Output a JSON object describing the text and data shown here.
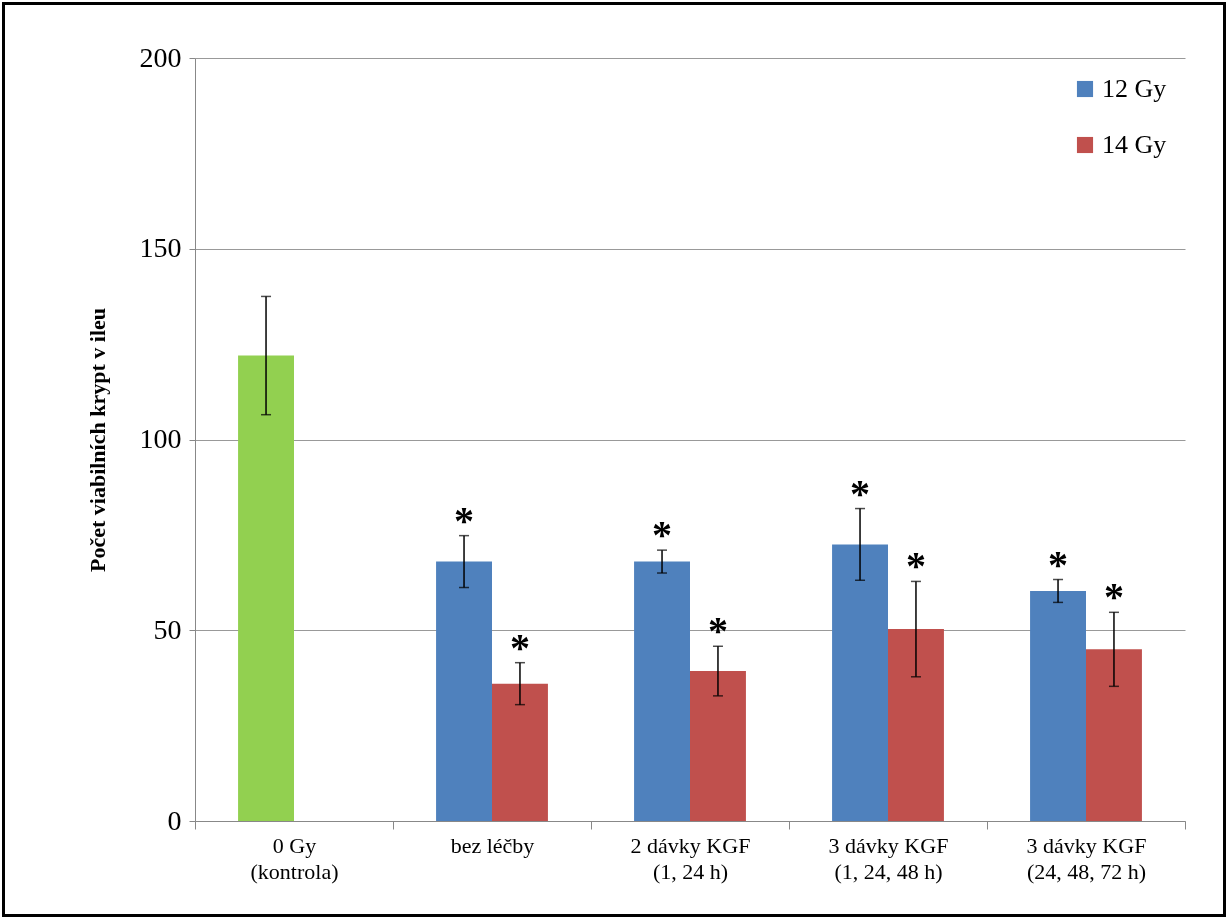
{
  "chart_data": {
    "type": "bar",
    "ylabel": "Počet viabilních krypt v ileu",
    "categories": [
      "0 Gy\n(kontrola)",
      "bez léčby",
      "2 dávky KGF\n(1, 24 h)",
      "3 dávky KGF\n(1, 24, 48 h)",
      "3 dávky KGF\n(24, 48, 72 h)"
    ],
    "series": [
      {
        "color": "#92d050",
        "values": [
          122,
          null,
          null,
          null,
          null
        ],
        "errors": [
          15.5,
          null,
          null,
          null,
          null
        ]
      },
      {
        "name": "12 Gy",
        "color": "#4f81bd",
        "values": [
          null,
          68,
          68,
          72.5,
          60.3
        ],
        "errors": [
          null,
          6.8,
          3,
          9.4,
          3
        ]
      },
      {
        "name": "14 Gy",
        "color": "#c0504d",
        "values": [
          null,
          36,
          39.3,
          50.3,
          45
        ],
        "errors": [
          null,
          5.5,
          6.5,
          12.5,
          9.7
        ]
      }
    ],
    "ylim": [
      0,
      200
    ],
    "yticks": [
      0,
      50,
      100,
      150,
      200
    ],
    "grid": "y",
    "legend": "top right",
    "annotations": [
      {
        "text": "*",
        "x": "bez léčby",
        "y": 68
      },
      {
        "text": "*",
        "x": "bez léčby",
        "y": 36
      },
      {
        "text": "*",
        "x": "2 dávky KGF\n(1, 24 h)",
        "y": 68
      },
      {
        "text": "*",
        "x": "2 dávky KGF\n(1, 24 h)",
        "y": 39.3
      },
      {
        "text": "*",
        "x": "3 dávky KGF\n(1, 24, 48 h)",
        "y": 72.5
      },
      {
        "text": "*",
        "x": "3 dávky KGF\n(1, 24, 48 h)",
        "y": 50.3
      },
      {
        "text": "*",
        "x": "3 dávky KGF\n(24, 48, 72 h)",
        "y": 60.3
      },
      {
        "text": "*",
        "x": "3 dávky KGF\n(24, 48, 72 h)",
        "y": 45
      }
    ]
  }
}
